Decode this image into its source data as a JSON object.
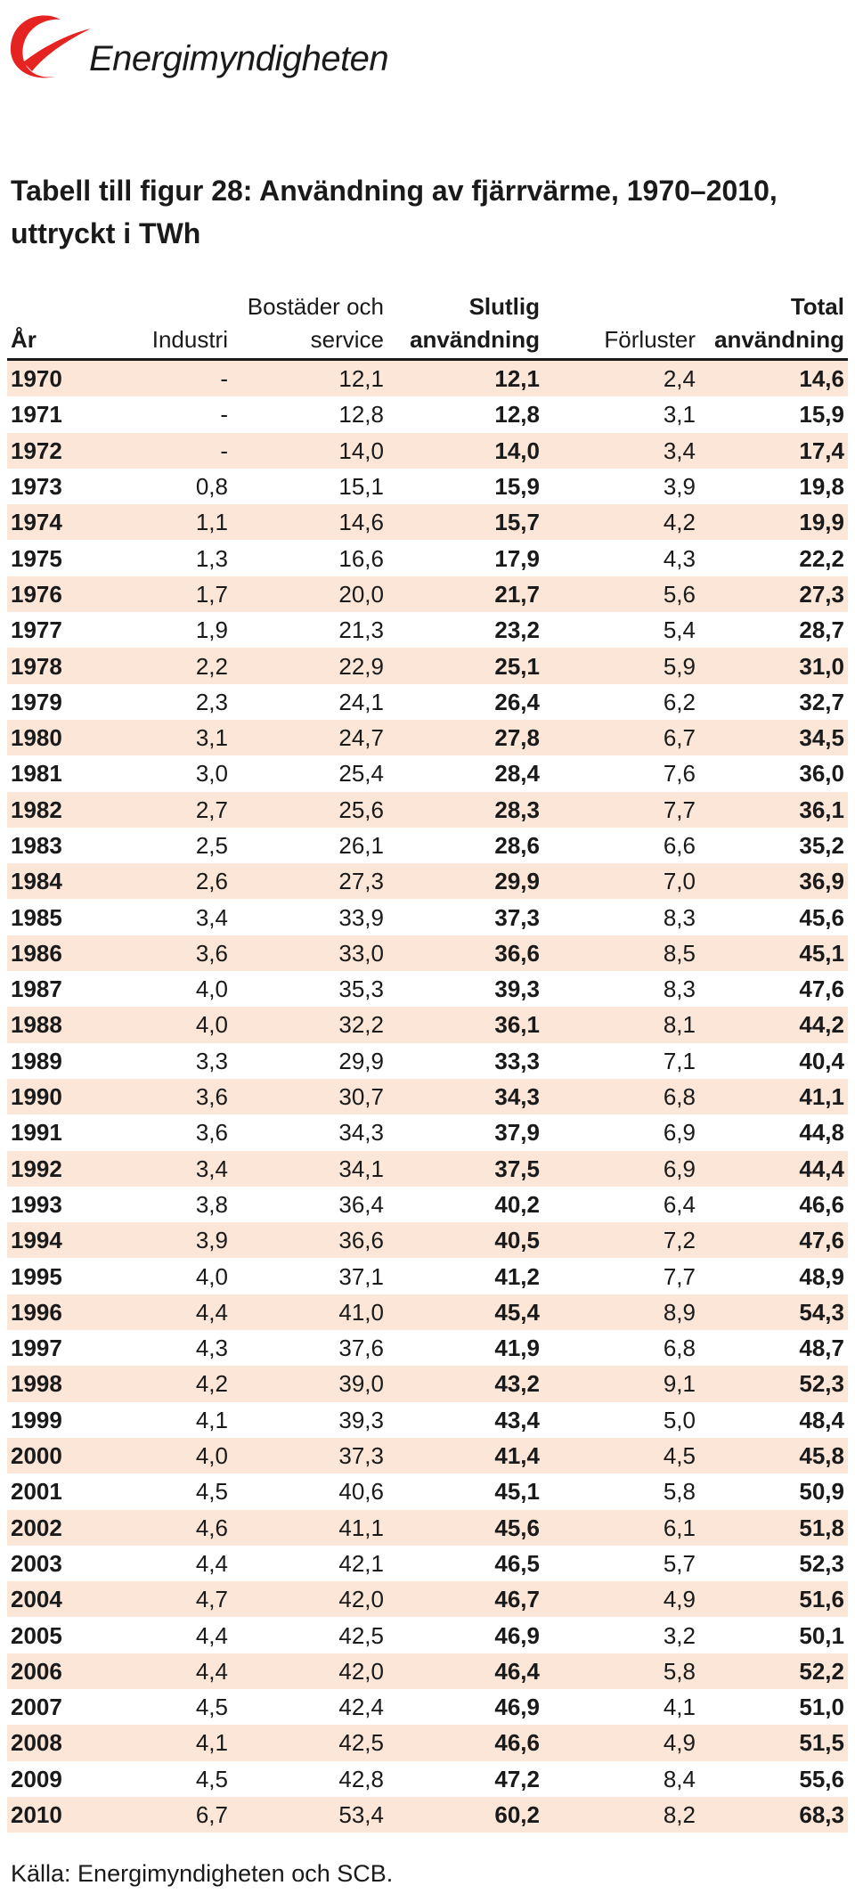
{
  "logo": {
    "text": "Energimyndigheten",
    "swoosh_color": "#e52320"
  },
  "title": "Tabell till figur 28: Användning av fjärrvärme, 1970–2010, uttryckt i TWh",
  "table": {
    "headers": [
      {
        "top": "",
        "bottom": "År"
      },
      {
        "top": "",
        "bottom": "Industri"
      },
      {
        "top": "Bostäder och",
        "bottom": "service"
      },
      {
        "top": "Slutlig",
        "bottom": "användning"
      },
      {
        "top": "",
        "bottom": "Förluster"
      },
      {
        "top": "Total",
        "bottom": "användning"
      }
    ],
    "rows": [
      [
        "1970",
        "-",
        "12,1",
        "12,1",
        "2,4",
        "14,6"
      ],
      [
        "1971",
        "-",
        "12,8",
        "12,8",
        "3,1",
        "15,9"
      ],
      [
        "1972",
        "-",
        "14,0",
        "14,0",
        "3,4",
        "17,4"
      ],
      [
        "1973",
        "0,8",
        "15,1",
        "15,9",
        "3,9",
        "19,8"
      ],
      [
        "1974",
        "1,1",
        "14,6",
        "15,7",
        "4,2",
        "19,9"
      ],
      [
        "1975",
        "1,3",
        "16,6",
        "17,9",
        "4,3",
        "22,2"
      ],
      [
        "1976",
        "1,7",
        "20,0",
        "21,7",
        "5,6",
        "27,3"
      ],
      [
        "1977",
        "1,9",
        "21,3",
        "23,2",
        "5,4",
        "28,7"
      ],
      [
        "1978",
        "2,2",
        "22,9",
        "25,1",
        "5,9",
        "31,0"
      ],
      [
        "1979",
        "2,3",
        "24,1",
        "26,4",
        "6,2",
        "32,7"
      ],
      [
        "1980",
        "3,1",
        "24,7",
        "27,8",
        "6,7",
        "34,5"
      ],
      [
        "1981",
        "3,0",
        "25,4",
        "28,4",
        "7,6",
        "36,0"
      ],
      [
        "1982",
        "2,7",
        "25,6",
        "28,3",
        "7,7",
        "36,1"
      ],
      [
        "1983",
        "2,5",
        "26,1",
        "28,6",
        "6,6",
        "35,2"
      ],
      [
        "1984",
        "2,6",
        "27,3",
        "29,9",
        "7,0",
        "36,9"
      ],
      [
        "1985",
        "3,4",
        "33,9",
        "37,3",
        "8,3",
        "45,6"
      ],
      [
        "1986",
        "3,6",
        "33,0",
        "36,6",
        "8,5",
        "45,1"
      ],
      [
        "1987",
        "4,0",
        "35,3",
        "39,3",
        "8,3",
        "47,6"
      ],
      [
        "1988",
        "4,0",
        "32,2",
        "36,1",
        "8,1",
        "44,2"
      ],
      [
        "1989",
        "3,3",
        "29,9",
        "33,3",
        "7,1",
        "40,4"
      ],
      [
        "1990",
        "3,6",
        "30,7",
        "34,3",
        "6,8",
        "41,1"
      ],
      [
        "1991",
        "3,6",
        "34,3",
        "37,9",
        "6,9",
        "44,8"
      ],
      [
        "1992",
        "3,4",
        "34,1",
        "37,5",
        "6,9",
        "44,4"
      ],
      [
        "1993",
        "3,8",
        "36,4",
        "40,2",
        "6,4",
        "46,6"
      ],
      [
        "1994",
        "3,9",
        "36,6",
        "40,5",
        "7,2",
        "47,6"
      ],
      [
        "1995",
        "4,0",
        "37,1",
        "41,2",
        "7,7",
        "48,9"
      ],
      [
        "1996",
        "4,4",
        "41,0",
        "45,4",
        "8,9",
        "54,3"
      ],
      [
        "1997",
        "4,3",
        "37,6",
        "41,9",
        "6,8",
        "48,7"
      ],
      [
        "1998",
        "4,2",
        "39,0",
        "43,2",
        "9,1",
        "52,3"
      ],
      [
        "1999",
        "4,1",
        "39,3",
        "43,4",
        "5,0",
        "48,4"
      ],
      [
        "2000",
        "4,0",
        "37,3",
        "41,4",
        "4,5",
        "45,8"
      ],
      [
        "2001",
        "4,5",
        "40,6",
        "45,1",
        "5,8",
        "50,9"
      ],
      [
        "2002",
        "4,6",
        "41,1",
        "45,6",
        "6,1",
        "51,8"
      ],
      [
        "2003",
        "4,4",
        "42,1",
        "46,5",
        "5,7",
        "52,3"
      ],
      [
        "2004",
        "4,7",
        "42,0",
        "46,7",
        "4,9",
        "51,6"
      ],
      [
        "2005",
        "4,4",
        "42,5",
        "46,9",
        "3,2",
        "50,1"
      ],
      [
        "2006",
        "4,4",
        "42,0",
        "46,4",
        "5,8",
        "52,2"
      ],
      [
        "2007",
        "4,5",
        "42,4",
        "46,9",
        "4,1",
        "51,0"
      ],
      [
        "2008",
        "4,1",
        "42,5",
        "46,6",
        "4,9",
        "51,5"
      ],
      [
        "2009",
        "4,5",
        "42,8",
        "47,2",
        "8,4",
        "55,6"
      ],
      [
        "2010",
        "6,7",
        "53,4",
        "60,2",
        "8,2",
        "68,3"
      ]
    ],
    "row_colors": {
      "odd": "#fbe6d8",
      "even": "#ffffff"
    },
    "rule_color": "#1a1a1a"
  },
  "source": "Källa: Energimyndigheten och SCB."
}
